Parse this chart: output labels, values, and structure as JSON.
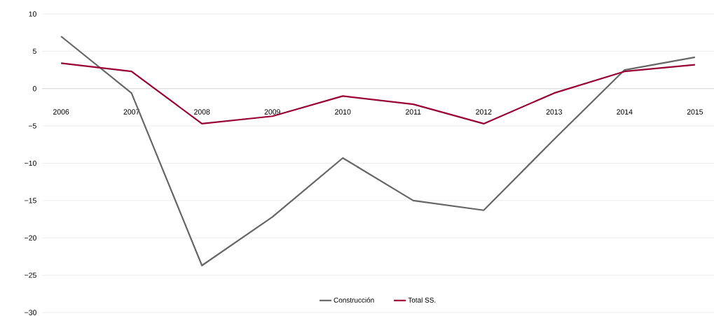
{
  "chart_data": {
    "type": "line",
    "categories": [
      "2006",
      "2007",
      "2008",
      "2009",
      "2010",
      "2011",
      "2012",
      "2013",
      "2014",
      "2015"
    ],
    "series": [
      {
        "name": "Construcción",
        "color": "#666666",
        "values": [
          7.0,
          -0.6,
          -23.7,
          -17.2,
          -9.3,
          -15.0,
          -16.3,
          -6.8,
          2.5,
          4.2
        ]
      },
      {
        "name": "Total SS.",
        "color": "#990033",
        "values": [
          3.4,
          2.3,
          -4.7,
          -3.7,
          -1.0,
          -2.1,
          -4.7,
          -0.6,
          2.3,
          3.2
        ]
      }
    ],
    "ylim": [
      -30,
      10
    ],
    "yticks": [
      {
        "value": -30,
        "label": "−30"
      },
      {
        "value": -25,
        "label": "−25"
      },
      {
        "value": -20,
        "label": "−20"
      },
      {
        "value": -15,
        "label": "−15"
      },
      {
        "value": -10,
        "label": "−10"
      },
      {
        "value": -5,
        "label": "−5"
      },
      0,
      5,
      10
    ],
    "grid": "y",
    "legend": "bottom",
    "marker": "none",
    "line_style": "solid"
  }
}
